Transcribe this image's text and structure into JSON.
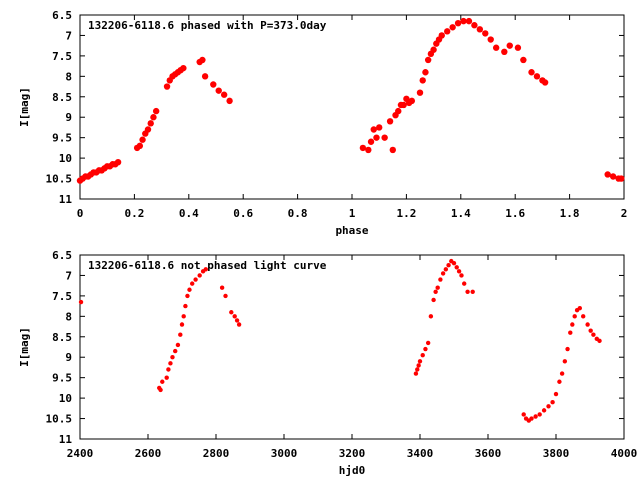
{
  "chart_data": [
    {
      "type": "scatter",
      "title": "132206-6118.6 phased with P=373.0day",
      "xlabel": "phase",
      "ylabel": "I[mag]",
      "xlim": [
        0,
        2
      ],
      "ylim": [
        11,
        6.5
      ],
      "y_inverted": true,
      "grid": false,
      "marker_color": "#ff0000",
      "xticks": [
        0,
        0.2,
        0.4,
        0.6,
        0.8,
        1,
        1.2,
        1.4,
        1.6,
        1.8,
        2
      ],
      "xtick_labels": [
        "0",
        "0.2",
        "0.4",
        "0.6",
        "0.8",
        "1",
        "1.2",
        "1.4",
        "1.6",
        "1.8",
        "2"
      ],
      "yticks": [
        6.5,
        7,
        7.5,
        8,
        8.5,
        9,
        9.5,
        10,
        10.5,
        11
      ],
      "ytick_labels": [
        "6.5",
        "7",
        "7.5",
        "8",
        "8.5",
        "9",
        "9.5",
        "10",
        "10.5",
        "11"
      ],
      "series": [
        {
          "x": [
            0.0,
            0.01,
            0.02,
            0.03,
            0.04,
            0.05,
            0.06,
            0.07,
            0.08,
            0.09,
            0.1,
            0.11,
            0.12,
            0.13,
            0.14,
            0.21,
            0.22,
            0.23,
            0.24,
            0.25,
            0.26,
            0.27,
            0.28,
            0.32,
            0.33,
            0.34,
            0.35,
            0.36,
            0.37,
            0.38,
            0.44,
            0.45,
            0.46,
            0.49,
            0.51,
            0.53,
            0.55,
            1.04,
            1.06,
            1.07,
            1.08,
            1.09,
            1.1,
            1.12,
            1.14,
            1.15,
            1.16,
            1.17,
            1.18,
            1.19,
            1.2,
            1.21,
            1.22,
            1.25,
            1.26,
            1.27,
            1.28,
            1.29,
            1.3,
            1.31,
            1.32,
            1.33,
            1.35,
            1.37,
            1.39,
            1.41,
            1.43,
            1.45,
            1.47,
            1.49,
            1.51,
            1.53,
            1.56,
            1.58,
            1.61,
            1.63,
            1.66,
            1.68,
            1.7,
            1.71,
            1.94,
            1.96,
            1.98,
            1.99
          ],
          "y": [
            10.55,
            10.5,
            10.45,
            10.45,
            10.4,
            10.35,
            10.35,
            10.3,
            10.3,
            10.25,
            10.2,
            10.2,
            10.15,
            10.15,
            10.1,
            9.75,
            9.7,
            9.55,
            9.4,
            9.3,
            9.15,
            9.0,
            8.85,
            8.25,
            8.1,
            8.0,
            7.95,
            7.9,
            7.85,
            7.8,
            7.65,
            7.6,
            8.0,
            8.2,
            8.35,
            8.45,
            8.6,
            9.75,
            9.8,
            9.6,
            9.3,
            9.5,
            9.25,
            9.5,
            9.1,
            9.8,
            8.95,
            8.85,
            8.7,
            8.7,
            8.55,
            8.65,
            8.6,
            8.4,
            8.1,
            7.9,
            7.6,
            7.45,
            7.35,
            7.2,
            7.1,
            7.0,
            6.9,
            6.8,
            6.7,
            6.65,
            6.65,
            6.75,
            6.85,
            6.95,
            7.1,
            7.3,
            7.4,
            7.25,
            7.3,
            7.6,
            7.9,
            8.0,
            8.1,
            8.15,
            10.4,
            10.45,
            10.5,
            10.5
          ]
        }
      ]
    },
    {
      "type": "scatter",
      "title": "132206-6118.6 not phased light curve",
      "xlabel": "hjd0",
      "ylabel": "I[mag]",
      "xlim": [
        2400,
        4000
      ],
      "ylim": [
        11,
        6.5
      ],
      "y_inverted": true,
      "grid": false,
      "marker_color": "#ff0000",
      "xticks": [
        2400,
        2600,
        2800,
        3000,
        3200,
        3400,
        3600,
        3800,
        4000
      ],
      "xtick_labels": [
        "2400",
        "2600",
        "2800",
        "3000",
        "3200",
        "3400",
        "3600",
        "3800",
        "4000"
      ],
      "yticks": [
        6.5,
        7,
        7.5,
        8,
        8.5,
        9,
        9.5,
        10,
        10.5,
        11
      ],
      "ytick_labels": [
        "6.5",
        "7",
        "7.5",
        "8",
        "8.5",
        "9",
        "9.5",
        "10",
        "10.5",
        "11"
      ],
      "series": [
        {
          "x": [
            2403,
            2633,
            2637,
            2642,
            2655,
            2660,
            2666,
            2672,
            2680,
            2688,
            2695,
            2700,
            2705,
            2710,
            2716,
            2722,
            2730,
            2740,
            2752,
            2762,
            2770,
            2818,
            2828,
            2845,
            2855,
            2862,
            2868,
            3388,
            3392,
            3396,
            3400,
            3408,
            3416,
            3424,
            3432,
            3440,
            3446,
            3452,
            3460,
            3468,
            3476,
            3484,
            3492,
            3500,
            3508,
            3515,
            3522,
            3530,
            3540,
            3555,
            3705,
            3712,
            3720,
            3728,
            3740,
            3752,
            3765,
            3778,
            3790,
            3800,
            3810,
            3818,
            3826,
            3834,
            3842,
            3848,
            3855,
            3862,
            3870,
            3880,
            3893,
            3902,
            3910,
            3920,
            3928
          ],
          "y": [
            7.65,
            9.75,
            9.8,
            9.6,
            9.5,
            9.3,
            9.15,
            9.0,
            8.85,
            8.7,
            8.45,
            8.2,
            8.0,
            7.75,
            7.5,
            7.35,
            7.2,
            7.1,
            7.0,
            6.9,
            6.85,
            7.3,
            7.5,
            7.9,
            8.0,
            8.1,
            8.2,
            9.4,
            9.3,
            9.2,
            9.1,
            8.95,
            8.8,
            8.65,
            8.0,
            7.6,
            7.4,
            7.3,
            7.1,
            6.95,
            6.85,
            6.75,
            6.65,
            6.7,
            6.8,
            6.9,
            7.0,
            7.2,
            7.4,
            7.4,
            10.4,
            10.5,
            10.55,
            10.5,
            10.45,
            10.4,
            10.3,
            10.2,
            10.1,
            9.9,
            9.6,
            9.4,
            9.1,
            8.8,
            8.4,
            8.2,
            8.0,
            7.85,
            7.8,
            8.0,
            8.2,
            8.35,
            8.45,
            8.55,
            8.6
          ]
        }
      ]
    }
  ]
}
